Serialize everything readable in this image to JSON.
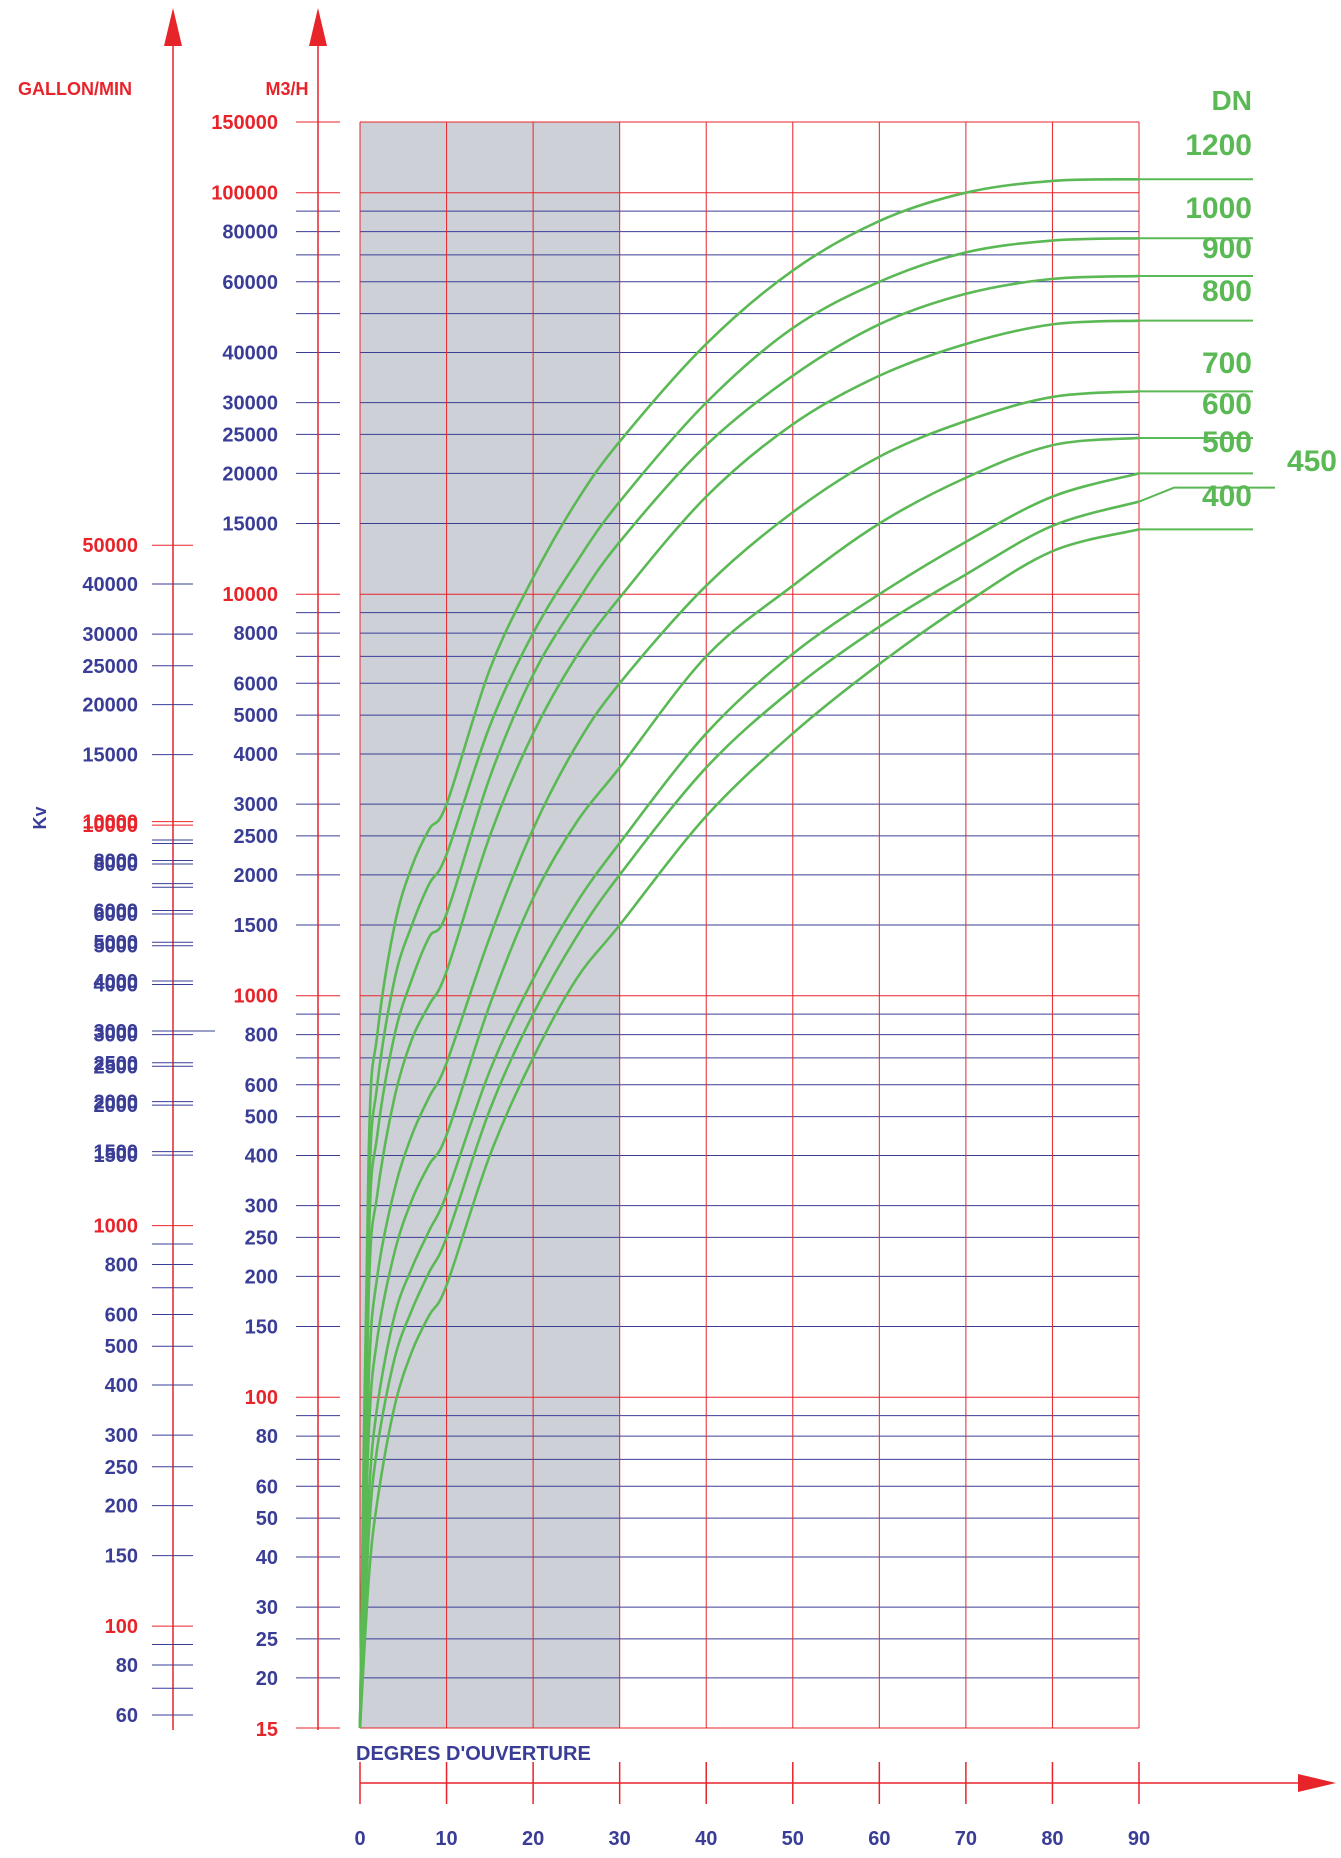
{
  "chart_data": {
    "type": "line",
    "title": "",
    "xlabel": "DEGRES D'OUVERTURE",
    "xlim": [
      0,
      90
    ],
    "x_ticks": [
      0,
      10,
      20,
      30,
      40,
      50,
      60,
      70,
      80,
      90
    ],
    "y_scale": "log",
    "ylim_m3h": [
      15,
      150000
    ],
    "ylabel_m3h": "M3/H",
    "ylabel_gpm": "GALLON/MIN",
    "ylabel_kv": "Kv",
    "m3h_labels": [
      {
        "v": 15,
        "t": "15",
        "red": true
      },
      {
        "v": 20,
        "t": "20"
      },
      {
        "v": 25,
        "t": "25"
      },
      {
        "v": 30,
        "t": "30"
      },
      {
        "v": 40,
        "t": "40"
      },
      {
        "v": 50,
        "t": "50"
      },
      {
        "v": 60,
        "t": "60"
      },
      {
        "v": 80,
        "t": "80"
      },
      {
        "v": 100,
        "t": "100",
        "red": true
      },
      {
        "v": 150,
        "t": "150"
      },
      {
        "v": 200,
        "t": "200"
      },
      {
        "v": 250,
        "t": "250"
      },
      {
        "v": 300,
        "t": "300"
      },
      {
        "v": 400,
        "t": "400"
      },
      {
        "v": 500,
        "t": "500"
      },
      {
        "v": 600,
        "t": "600"
      },
      {
        "v": 800,
        "t": "800"
      },
      {
        "v": 1000,
        "t": "1000",
        "red": true
      },
      {
        "v": 1500,
        "t": "1500"
      },
      {
        "v": 2000,
        "t": "2000"
      },
      {
        "v": 2500,
        "t": "2500"
      },
      {
        "v": 3000,
        "t": "3000"
      },
      {
        "v": 4000,
        "t": "4000"
      },
      {
        "v": 5000,
        "t": "5000"
      },
      {
        "v": 6000,
        "t": "6000"
      },
      {
        "v": 8000,
        "t": "8000"
      },
      {
        "v": 10000,
        "t": "10000",
        "red": true
      },
      {
        "v": 15000,
        "t": "15000"
      },
      {
        "v": 20000,
        "t": "20000"
      },
      {
        "v": 25000,
        "t": "25000"
      },
      {
        "v": 30000,
        "t": "30000"
      },
      {
        "v": 40000,
        "t": "40000"
      },
      {
        "v": 60000,
        "t": "60000"
      },
      {
        "v": 80000,
        "t": "80000"
      },
      {
        "v": 100000,
        "t": "100000",
        "red": true
      },
      {
        "v": 150000,
        "t": "150000",
        "red": true
      }
    ],
    "gridlines_m3h": [
      15,
      20,
      25,
      30,
      40,
      50,
      60,
      70,
      80,
      90,
      100,
      150,
      200,
      250,
      300,
      400,
      500,
      600,
      700,
      800,
      900,
      1000,
      1500,
      2000,
      2500,
      3000,
      4000,
      5000,
      6000,
      7000,
      8000,
      9000,
      10000,
      15000,
      20000,
      25000,
      30000,
      40000,
      50000,
      60000,
      70000,
      80000,
      90000,
      100000,
      150000
    ],
    "gpm_labels": [
      {
        "v": 60,
        "t": "60"
      },
      {
        "v": 80,
        "t": "80"
      },
      {
        "v": 100,
        "t": "100",
        "red": true
      },
      {
        "v": 150,
        "t": "150"
      },
      {
        "v": 200,
        "t": "200"
      },
      {
        "v": 250,
        "t": "250"
      },
      {
        "v": 300,
        "t": "300"
      },
      {
        "v": 400,
        "t": "400"
      },
      {
        "v": 500,
        "t": "500"
      },
      {
        "v": 600,
        "t": "600"
      },
      {
        "v": 800,
        "t": "800"
      },
      {
        "v": 1000,
        "t": "1000",
        "red": true
      },
      {
        "v": 1500,
        "t": "1500"
      },
      {
        "v": 2000,
        "t": "2000"
      },
      {
        "v": 2500,
        "t": "2500"
      },
      {
        "v": 3000,
        "t": "3000"
      },
      {
        "v": 4000,
        "t": "4000"
      },
      {
        "v": 5000,
        "t": "5000"
      },
      {
        "v": 6000,
        "t": "6000"
      },
      {
        "v": 8000,
        "t": "8000"
      },
      {
        "v": 10000,
        "t": "10000",
        "red": true
      },
      {
        "v": 15000,
        "t": "15000"
      },
      {
        "v": 20000,
        "t": "20000"
      },
      {
        "v": 25000,
        "t": "25000"
      },
      {
        "v": 30000,
        "t": "30000"
      },
      {
        "v": 40000,
        "t": "40000"
      },
      {
        "v": 50000,
        "t": "50000",
        "red": true
      }
    ],
    "gpm_minor_ticks": [
      70,
      90,
      700,
      900,
      7000,
      9000
    ],
    "kv_labels": [
      {
        "v": 1500,
        "t": "1500"
      },
      {
        "v": 2000,
        "t": "2000"
      },
      {
        "v": 2500,
        "t": "2500"
      },
      {
        "v": 3000,
        "t": "3000"
      },
      {
        "v": 4000,
        "t": "4000"
      },
      {
        "v": 5000,
        "t": "5000"
      },
      {
        "v": 6000,
        "t": "6000"
      },
      {
        "v": 8000,
        "t": "8000"
      },
      {
        "v": 10000,
        "t": "10000",
        "red": true
      }
    ],
    "kv_minor_ticks": [
      7000,
      9000
    ],
    "shaded_x_range": [
      0,
      30
    ],
    "legend_title": "DN",
    "series": [
      {
        "name": "1200",
        "x": [
          0,
          1,
          2,
          4,
          6,
          8,
          10,
          15,
          20,
          25,
          30,
          40,
          50,
          60,
          70,
          80,
          90
        ],
        "values": [
          15,
          400,
          800,
          1500,
          2100,
          2600,
          3000,
          6500,
          11000,
          17000,
          24000,
          42000,
          64000,
          85000,
          100000,
          107000,
          108000
        ]
      },
      {
        "name": "1000",
        "x": [
          0,
          1,
          2,
          4,
          6,
          8,
          10,
          15,
          20,
          25,
          30,
          40,
          50,
          60,
          70,
          80,
          90
        ],
        "values": [
          15,
          300,
          600,
          1100,
          1500,
          1900,
          2250,
          4700,
          8000,
          12000,
          17000,
          30000,
          46000,
          60000,
          71000,
          76000,
          77000
        ]
      },
      {
        "name": "900",
        "x": [
          0,
          1,
          2,
          4,
          6,
          8,
          10,
          15,
          20,
          25,
          30,
          40,
          50,
          60,
          70,
          80,
          90
        ],
        "values": [
          15,
          240,
          450,
          800,
          1100,
          1400,
          1600,
          3500,
          6300,
          9500,
          13500,
          23500,
          35000,
          47000,
          56000,
          61000,
          62000
        ]
      },
      {
        "name": "800",
        "x": [
          0,
          1,
          2,
          4,
          6,
          8,
          10,
          15,
          20,
          25,
          30,
          40,
          50,
          60,
          70,
          80,
          90
        ],
        "values": [
          15,
          180,
          320,
          560,
          780,
          950,
          1150,
          2500,
          4500,
          7000,
          9800,
          17500,
          26500,
          35000,
          42000,
          47000,
          48000
        ]
      },
      {
        "name": "700",
        "x": [
          0,
          1,
          2,
          4,
          6,
          8,
          10,
          15,
          20,
          25,
          30,
          40,
          50,
          60,
          70,
          80,
          90
        ],
        "values": [
          15,
          110,
          200,
          330,
          450,
          560,
          680,
          1400,
          2600,
          4200,
          6000,
          10500,
          16000,
          22000,
          27000,
          31000,
          32000
        ]
      },
      {
        "name": "600",
        "x": [
          0,
          1,
          2,
          4,
          6,
          8,
          10,
          15,
          20,
          25,
          30,
          40,
          50,
          60,
          70,
          80,
          90
        ],
        "values": [
          15,
          80,
          140,
          230,
          310,
          380,
          450,
          950,
          1750,
          2700,
          3700,
          7000,
          10500,
          15000,
          19500,
          23500,
          24500
        ]
      },
      {
        "name": "500",
        "x": [
          0,
          1,
          2,
          4,
          6,
          8,
          10,
          15,
          20,
          25,
          30,
          40,
          50,
          60,
          70,
          80,
          90
        ],
        "values": [
          15,
          55,
          95,
          160,
          210,
          260,
          320,
          650,
          1100,
          1700,
          2400,
          4500,
          7100,
          10000,
          13500,
          17500,
          20000
        ]
      },
      {
        "name": "450",
        "x": [
          0,
          1,
          2,
          4,
          6,
          8,
          10,
          15,
          20,
          25,
          30,
          40,
          50,
          60,
          70,
          80,
          90
        ],
        "values": [
          15,
          45,
          75,
          125,
          165,
          205,
          250,
          520,
          900,
          1400,
          2000,
          3700,
          5800,
          8300,
          11200,
          14800,
          17000
        ]
      },
      {
        "name": "400",
        "x": [
          0,
          1,
          2,
          4,
          6,
          8,
          10,
          15,
          20,
          25,
          30,
          40,
          50,
          60,
          70,
          80,
          90
        ],
        "values": [
          15,
          35,
          55,
          95,
          130,
          160,
          190,
          400,
          700,
          1100,
          1500,
          2800,
          4500,
          6700,
          9500,
          12800,
          14500
        ]
      }
    ]
  },
  "colors": {
    "grid_red": "#e8242b",
    "grid_blue": "#3a3d96",
    "text_blue": "#3a3d96",
    "text_red": "#e8242b",
    "curve_green": "#5bb955",
    "shade": "#cdd0d6"
  }
}
